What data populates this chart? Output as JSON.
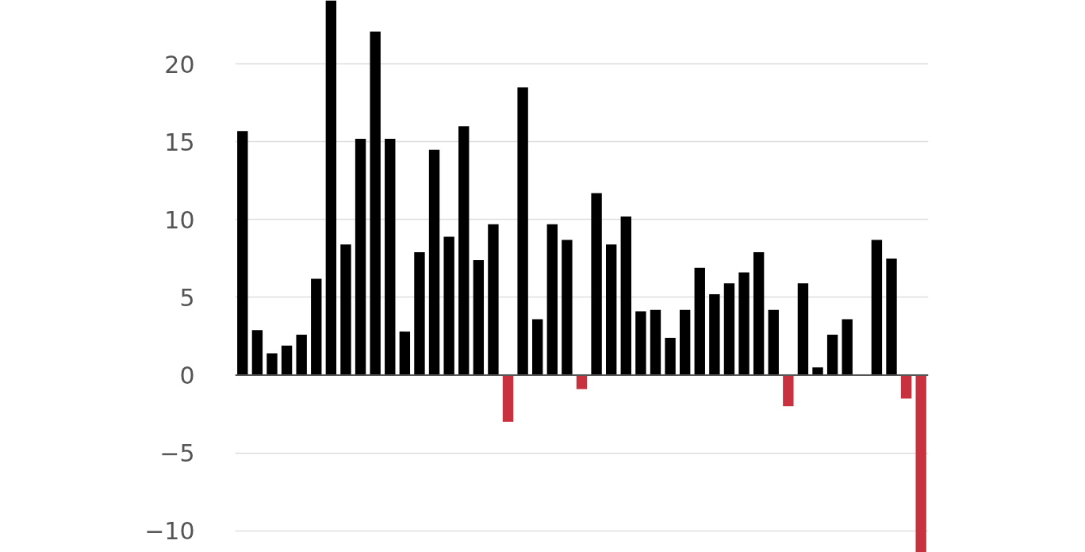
{
  "chart_data": {
    "type": "bar",
    "categories": [
      null,
      null,
      null,
      null,
      null,
      null,
      null,
      null,
      null,
      null,
      null,
      null,
      null,
      null,
      null,
      null,
      null,
      null,
      null,
      null,
      null,
      null,
      null,
      null,
      null,
      null,
      null,
      null,
      null,
      null,
      null,
      null,
      null,
      null,
      null,
      null,
      null,
      null,
      null,
      null,
      null,
      null,
      null,
      null,
      null,
      null,
      null
    ],
    "values": [
      15.7,
      2.9,
      1.4,
      1.9,
      2.6,
      6.2,
      24.1,
      8.4,
      15.2,
      22.1,
      15.2,
      2.8,
      7.9,
      14.5,
      8.9,
      16.0,
      7.4,
      9.7,
      -3.0,
      18.5,
      3.6,
      9.7,
      8.7,
      -0.9,
      11.7,
      8.4,
      10.2,
      4.1,
      4.2,
      2.4,
      4.2,
      6.9,
      5.2,
      5.9,
      6.6,
      7.9,
      4.2,
      -2.0,
      5.9,
      0.5,
      2.6,
      3.6,
      null,
      8.7,
      7.5,
      -1.5,
      -11.4
    ],
    "colors": [
      "#000000",
      "#000000",
      "#000000",
      "#000000",
      "#000000",
      "#000000",
      "#000000",
      "#000000",
      "#000000",
      "#000000",
      "#000000",
      "#000000",
      "#000000",
      "#000000",
      "#000000",
      "#000000",
      "#000000",
      "#000000",
      "#c8313e",
      "#000000",
      "#000000",
      "#000000",
      "#000000",
      "#c8313e",
      "#000000",
      "#000000",
      "#000000",
      "#000000",
      "#000000",
      "#000000",
      "#000000",
      "#000000",
      "#000000",
      "#000000",
      "#000000",
      "#000000",
      "#000000",
      "#c8313e",
      "#000000",
      "#000000",
      "#000000",
      "#000000",
      "#000000",
      "#000000",
      "#000000",
      "#c8313e",
      "#c8313e"
    ],
    "ylim": [
      -11.4,
      24.1
    ],
    "yticks": [
      -10,
      -5,
      0,
      5,
      10,
      15,
      20
    ],
    "grid": "y",
    "ref_lines": [
      {
        "axis": "y",
        "value": 0,
        "color": "#555555"
      }
    ]
  }
}
